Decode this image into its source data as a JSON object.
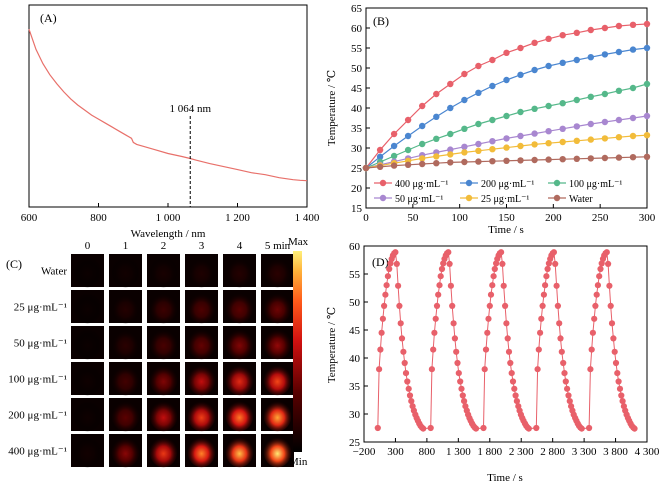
{
  "chart_data": [
    {
      "panel": "(A)",
      "type": "line",
      "xlabel": "Wavelength / nm",
      "ylabel": "",
      "xlim": [
        600,
        1400
      ],
      "ylim": [
        0,
        1
      ],
      "x_tick_labels": [
        "600",
        "800",
        "1 000",
        "1 200",
        "1 400"
      ],
      "x_ticks": [
        600,
        800,
        1000,
        1200,
        1400
      ],
      "annotation": {
        "text": "1 064 nm",
        "x": 1064
      },
      "color": "#e8706a",
      "series": [
        {
          "x": [
            600,
            620,
            640,
            660,
            680,
            700,
            720,
            740,
            760,
            780,
            800,
            820,
            840,
            860,
            880,
            895,
            900,
            910,
            930,
            960,
            1000,
            1040,
            1064,
            1080,
            1120,
            1160,
            1200,
            1240,
            1280,
            1320,
            1360,
            1380,
            1400
          ],
          "values": [
            0.88,
            0.78,
            0.71,
            0.655,
            0.61,
            0.57,
            0.535,
            0.505,
            0.48,
            0.455,
            0.435,
            0.415,
            0.395,
            0.375,
            0.355,
            0.34,
            0.32,
            0.31,
            0.3,
            0.285,
            0.265,
            0.25,
            0.24,
            0.232,
            0.215,
            0.2,
            0.185,
            0.17,
            0.16,
            0.145,
            0.135,
            0.132,
            0.13
          ]
        }
      ]
    },
    {
      "panel": "(B)",
      "type": "line",
      "xlabel": "Time / s",
      "ylabel": "Temperature / ℃",
      "xlim": [
        0,
        300
      ],
      "ylim": [
        15,
        65
      ],
      "x_ticks": [
        0,
        50,
        100,
        150,
        200,
        250,
        300
      ],
      "y_ticks": [
        15,
        20,
        25,
        30,
        35,
        40,
        45,
        50,
        55,
        60,
        65
      ],
      "x": [
        0,
        15,
        30,
        45,
        60,
        75,
        90,
        105,
        120,
        135,
        150,
        165,
        180,
        195,
        210,
        225,
        240,
        255,
        270,
        285,
        300
      ],
      "series": [
        {
          "name": "400 μg·mL⁻¹",
          "color": "#e8606a",
          "values": [
            25,
            29.5,
            33.5,
            37,
            40.5,
            43.5,
            46,
            48.5,
            50.5,
            52,
            53.8,
            55,
            56.3,
            57.3,
            58.2,
            58.8,
            59.5,
            60,
            60.5,
            60.8,
            61
          ]
        },
        {
          "name": "200 μg·mL⁻¹",
          "color": "#4a86d0",
          "values": [
            25,
            27.8,
            30.5,
            33,
            35.5,
            37.8,
            40,
            42,
            43.8,
            45.5,
            47,
            48.3,
            49.5,
            50.5,
            51.3,
            52,
            52.7,
            53.4,
            54,
            54.6,
            55
          ]
        },
        {
          "name": "100 μg·mL⁻¹",
          "color": "#55b88a",
          "values": [
            25,
            26.5,
            28,
            29.5,
            31,
            32.3,
            33.5,
            34.8,
            36,
            37,
            38,
            39,
            39.8,
            40.5,
            41.2,
            42,
            42.8,
            43.5,
            44.3,
            45,
            46
          ]
        },
        {
          "name": "50 μg·mL⁻¹",
          "color": "#a887d0",
          "values": [
            25,
            25.8,
            26.6,
            27.4,
            28.2,
            28.9,
            29.6,
            30.3,
            31,
            31.7,
            32.4,
            33,
            33.6,
            34.2,
            34.8,
            35.4,
            36,
            36.5,
            37,
            37.5,
            38
          ]
        },
        {
          "name": "25 μg·mL⁻¹",
          "color": "#f2bc3a",
          "values": [
            25,
            25.6,
            26.2,
            26.8,
            27.4,
            27.9,
            28.4,
            28.9,
            29.3,
            29.7,
            30.1,
            30.5,
            30.9,
            31.2,
            31.5,
            31.8,
            32.1,
            32.4,
            32.7,
            33,
            33.2
          ]
        },
        {
          "name": "Water",
          "color": "#b06a5e",
          "values": [
            25,
            25.3,
            25.6,
            25.8,
            26,
            26.2,
            26.4,
            26.5,
            26.6,
            26.7,
            26.8,
            26.9,
            27,
            27.1,
            27.2,
            27.3,
            27.4,
            27.5,
            27.6,
            27.7,
            27.8
          ]
        }
      ]
    },
    {
      "panel": "(C)",
      "type": "heatmap",
      "col_labels": [
        "0",
        "1",
        "2",
        "3",
        "4",
        "5 min"
      ],
      "row_labels": [
        "Water",
        "25 μg·mL⁻¹",
        "50 μg·mL⁻¹",
        "100 μg·mL⁻¹",
        "200 μg·mL⁻¹",
        "400 μg·mL⁻¹"
      ],
      "colorbar_max": "Max",
      "colorbar_min": "Min",
      "values": [
        [
          0.04,
          0.06,
          0.08,
          0.1,
          0.12,
          0.14
        ],
        [
          0.04,
          0.12,
          0.2,
          0.26,
          0.3,
          0.34
        ],
        [
          0.04,
          0.14,
          0.24,
          0.32,
          0.38,
          0.42
        ],
        [
          0.05,
          0.22,
          0.38,
          0.52,
          0.62,
          0.7
        ],
        [
          0.05,
          0.3,
          0.52,
          0.68,
          0.8,
          0.88
        ],
        [
          0.06,
          0.4,
          0.66,
          0.82,
          0.92,
          0.99
        ]
      ]
    },
    {
      "panel": "(D)",
      "type": "line",
      "xlabel": "Time / s",
      "ylabel": "Temperature / ℃",
      "xlim": [
        -200,
        4300
      ],
      "ylim": [
        25,
        60
      ],
      "x_ticks": [
        -200,
        300,
        800,
        1300,
        1800,
        2300,
        2800,
        3300,
        3800,
        4300
      ],
      "x_tick_labels": [
        "−200",
        "300",
        "800",
        "1 300",
        "1 800",
        "2 300",
        "2 800",
        "3 300",
        "3 800",
        "4 300"
      ],
      "y_ticks": [
        25,
        30,
        35,
        40,
        45,
        50,
        55,
        60
      ],
      "color": "#e8606a",
      "cycles": {
        "count": 5,
        "start_times": [
          20,
          860,
          1700,
          2540,
          3380
        ],
        "heating_temps": [
          27.5,
          38,
          41.5,
          44.5,
          47,
          49.3,
          51.3,
          53,
          54.6,
          55.9,
          56.9,
          57.7,
          58.3,
          58.7,
          58.9
        ],
        "cooling_temps": [
          58.9,
          56.8,
          52.9,
          49.3,
          46.2,
          43.5,
          41.1,
          39.1,
          37.3,
          35.8,
          34.5,
          33.3,
          32.3,
          31.4,
          30.6,
          29.9,
          29.3,
          28.8,
          28.3,
          27.9,
          27.6,
          27.4
        ],
        "step_seconds": 20
      }
    }
  ]
}
